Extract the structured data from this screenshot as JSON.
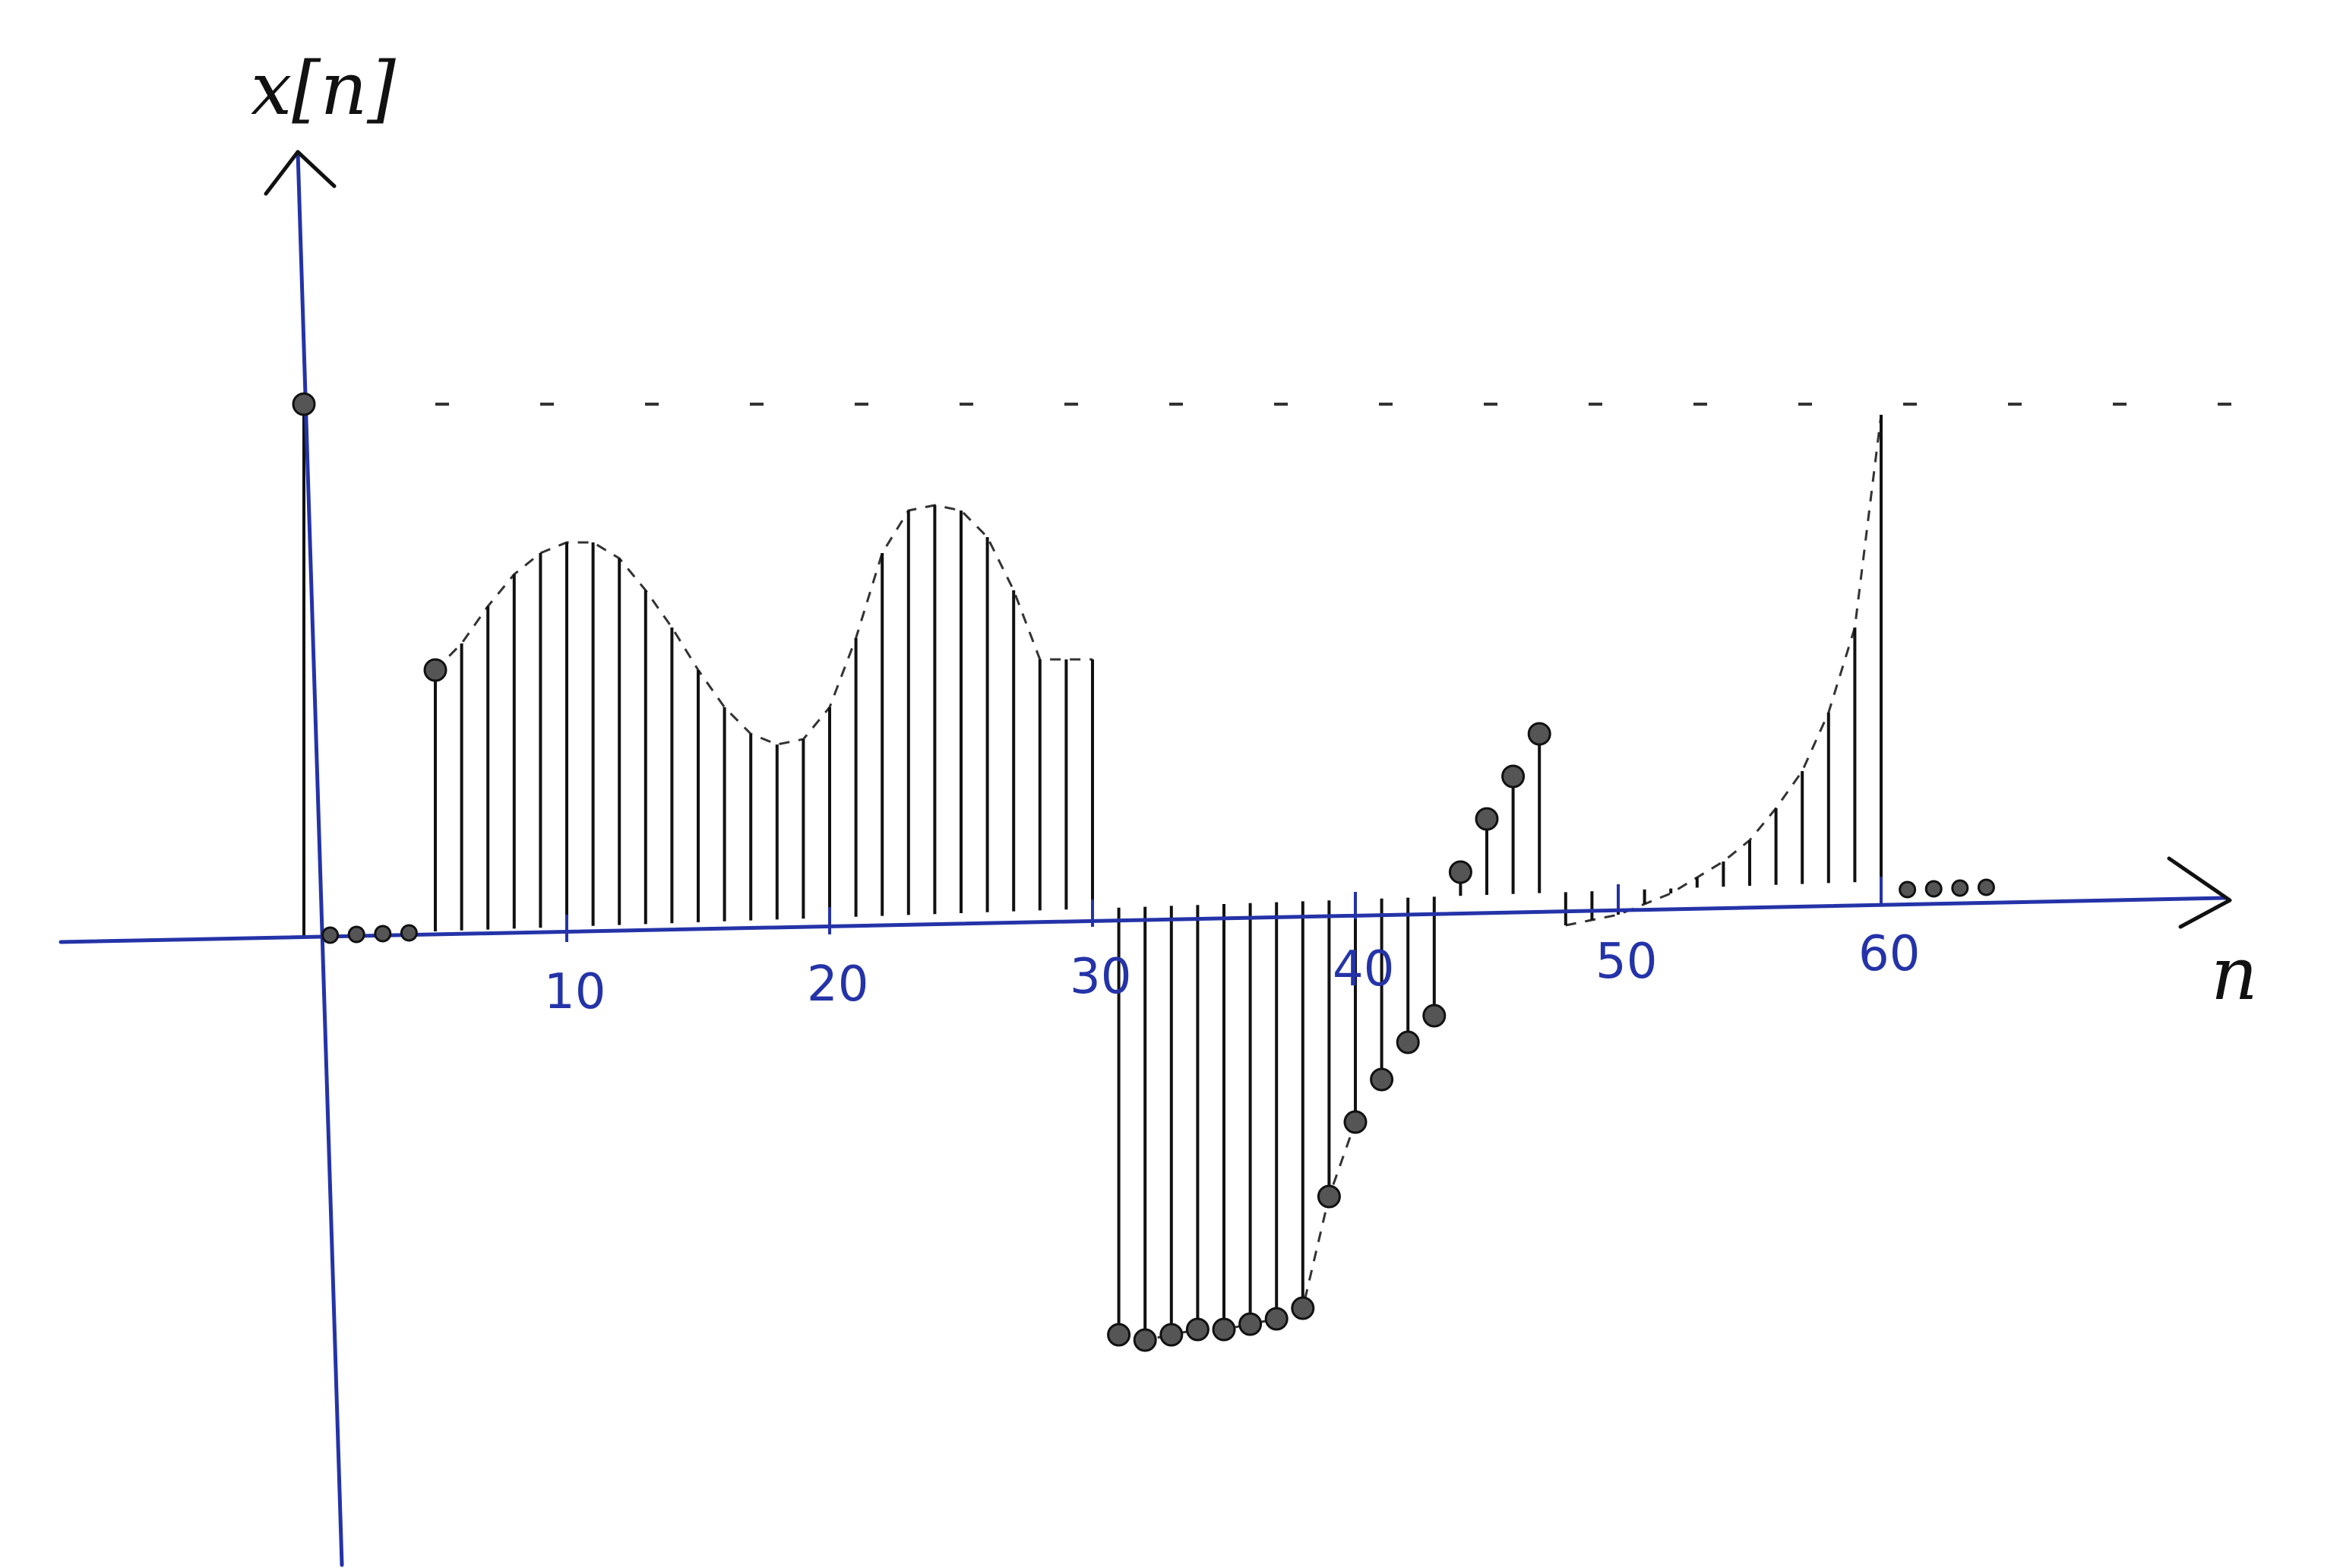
{
  "chart_data": {
    "type": "stem",
    "xlabel": "n",
    "ylabel": "x[n]",
    "xlim": [
      -3,
      68
    ],
    "ylim": [
      -1.05,
      1.45
    ],
    "xticks": [
      10,
      20,
      30,
      40,
      50,
      60
    ],
    "xtick_labels": [
      "10",
      "20",
      "30",
      "40",
      "50",
      "60"
    ],
    "y_marked_value": 1.0,
    "y_reference_line": 1.0,
    "grid": false,
    "series": [
      {
        "x": [
          0,
          1,
          2,
          3,
          4,
          5,
          6,
          7,
          8,
          9,
          10,
          11,
          12,
          13,
          14,
          15,
          16,
          17,
          18,
          19,
          20,
          21,
          22,
          23,
          24,
          25,
          26,
          27,
          28,
          29,
          30,
          31,
          32,
          33,
          34,
          35,
          36,
          37,
          38,
          39,
          40,
          41,
          42,
          43,
          44,
          45,
          46,
          47,
          48,
          49,
          50,
          51,
          52,
          53,
          54,
          55,
          56,
          57,
          58,
          59,
          60,
          61,
          62,
          63,
          64
        ],
        "y": [
          1.0,
          0,
          0,
          0,
          0,
          0.5,
          0.55,
          0.62,
          0.68,
          0.72,
          0.74,
          0.74,
          0.71,
          0.65,
          0.58,
          0.5,
          0.43,
          0.38,
          0.36,
          0.37,
          0.43,
          0.56,
          0.72,
          0.8,
          0.81,
          0.8,
          0.75,
          0.65,
          0.52,
          0.52,
          0.52,
          -0.75,
          -0.76,
          -0.75,
          -0.74,
          -0.74,
          -0.73,
          -0.72,
          -0.7,
          -0.49,
          -0.35,
          -0.27,
          -0.2,
          -0.15,
          0.12,
          0.22,
          0.3,
          0.38,
          0.02,
          0.03,
          0.04,
          0.06,
          0.08,
          0.11,
          0.14,
          0.18,
          0.24,
          0.31,
          0.42,
          0.58,
          0.98,
          0,
          0,
          0,
          0
        ],
        "marked": [
          0,
          1,
          2,
          3,
          4,
          5,
          31,
          32,
          33,
          34,
          35,
          36,
          37,
          38,
          39,
          40,
          41,
          42,
          43,
          44,
          45,
          46,
          47,
          61,
          62,
          63,
          64
        ]
      }
    ]
  }
}
